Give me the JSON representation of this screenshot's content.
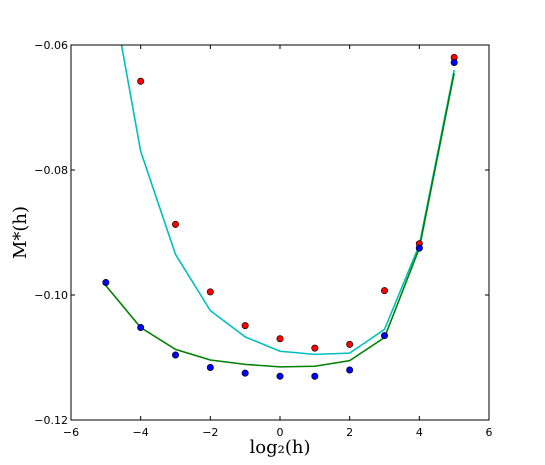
{
  "chart_data": {
    "type": "scatter",
    "xlabel": "log₂(h)",
    "ylabel": "M*(h)",
    "xlim": [
      -6,
      6
    ],
    "ylim": [
      -0.12,
      -0.06
    ],
    "x_ticks": [
      "−6",
      "−4",
      "−2",
      "0",
      "2",
      "4",
      "6"
    ],
    "x_tick_values": [
      -6,
      -4,
      -2,
      0,
      2,
      4,
      6
    ],
    "y_ticks": [
      "−0.12",
      "−0.10",
      "−0.08",
      "−0.06"
    ],
    "y_tick_values": [
      -0.12,
      -0.1,
      -0.08,
      -0.06
    ],
    "grid": false,
    "series": [
      {
        "kind": "points",
        "color": "#ff0000",
        "x": [
          -4,
          -3,
          -2,
          -1,
          0,
          1,
          2,
          3,
          4,
          5
        ],
        "y": [
          -0.0658,
          -0.0887,
          -0.0995,
          -0.1049,
          -0.107,
          -0.1085,
          -0.1079,
          -0.0993,
          -0.0918,
          -0.062
        ]
      },
      {
        "kind": "points",
        "color": "#0000ff",
        "x": [
          -5,
          -4,
          -3,
          -2,
          -1,
          0,
          1,
          2,
          3,
          4,
          5
        ],
        "y": [
          -0.098,
          -0.1052,
          -0.1096,
          -0.1116,
          -0.1125,
          -0.113,
          -0.113,
          -0.112,
          -0.1065,
          -0.0925,
          -0.0628
        ]
      },
      {
        "kind": "line",
        "color": "#00bfbf",
        "x": [
          -4.55,
          -4,
          -3,
          -2,
          -1,
          0,
          1,
          2,
          3,
          4,
          5
        ],
        "y": [
          -0.06,
          -0.077,
          -0.0935,
          -0.1025,
          -0.1067,
          -0.109,
          -0.1095,
          -0.1093,
          -0.1055,
          -0.092,
          -0.064
        ]
      },
      {
        "kind": "line",
        "color": "#008000",
        "x": [
          -5,
          -4,
          -3,
          -2,
          -1,
          0,
          1,
          2,
          3,
          4,
          5
        ],
        "y": [
          -0.0985,
          -0.1052,
          -0.1087,
          -0.1104,
          -0.1111,
          -0.1115,
          -0.1114,
          -0.1105,
          -0.1068,
          -0.0925,
          -0.0645
        ]
      }
    ]
  }
}
